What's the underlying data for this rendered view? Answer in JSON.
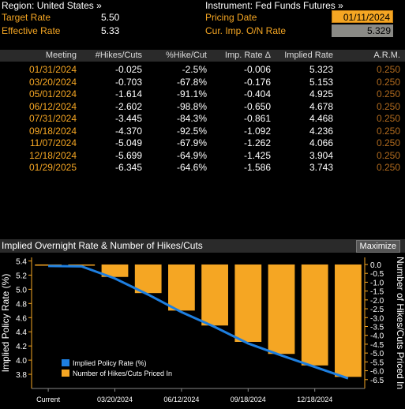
{
  "header": {
    "region_label": "Region: United States »",
    "instrument_label": "Instrument: Fed Funds Futures »",
    "target_rate_label": "Target Rate",
    "target_rate_value": "5.50",
    "effective_rate_label": "Effective Rate",
    "effective_rate_value": "5.33",
    "pricing_date_label": "Pricing Date",
    "pricing_date_value": "01/11/2024",
    "cur_imp_label": "Cur. Imp. O/N Rate",
    "cur_imp_value": "5.329"
  },
  "table": {
    "headers": [
      "Meeting",
      "#Hikes/Cuts",
      "%Hike/Cut",
      "Imp. Rate Δ",
      "Implied Rate",
      "A.R.M."
    ],
    "rows": [
      {
        "meeting": "01/31/2024",
        "hikes": "-0.025",
        "pct": "-2.5%",
        "imp_delta": "-0.006",
        "implied": "5.323",
        "arm": "0.250"
      },
      {
        "meeting": "03/20/2024",
        "hikes": "-0.703",
        "pct": "-67.8%",
        "imp_delta": "-0.176",
        "implied": "5.153",
        "arm": "0.250"
      },
      {
        "meeting": "05/01/2024",
        "hikes": "-1.614",
        "pct": "-91.1%",
        "imp_delta": "-0.404",
        "implied": "4.925",
        "arm": "0.250"
      },
      {
        "meeting": "06/12/2024",
        "hikes": "-2.602",
        "pct": "-98.8%",
        "imp_delta": "-0.650",
        "implied": "4.678",
        "arm": "0.250"
      },
      {
        "meeting": "07/31/2024",
        "hikes": "-3.445",
        "pct": "-84.3%",
        "imp_delta": "-0.861",
        "implied": "4.468",
        "arm": "0.250"
      },
      {
        "meeting": "09/18/2024",
        "hikes": "-4.370",
        "pct": "-92.5%",
        "imp_delta": "-1.092",
        "implied": "4.236",
        "arm": "0.250"
      },
      {
        "meeting": "11/07/2024",
        "hikes": "-5.049",
        "pct": "-67.9%",
        "imp_delta": "-1.262",
        "implied": "4.066",
        "arm": "0.250"
      },
      {
        "meeting": "12/18/2024",
        "hikes": "-5.699",
        "pct": "-64.9%",
        "imp_delta": "-1.425",
        "implied": "3.904",
        "arm": "0.250"
      },
      {
        "meeting": "01/29/2025",
        "hikes": "-6.345",
        "pct": "-64.6%",
        "imp_delta": "-1.586",
        "implied": "3.743",
        "arm": "0.250"
      }
    ]
  },
  "chart_panel": {
    "title": "Implied Overnight Rate & Number of Hikes/Cuts",
    "maximize_label": "Maximize"
  },
  "colors": {
    "accent_orange": "#f5a623",
    "line_blue": "#1e7fe0",
    "arm_orange": "#b06a1e"
  },
  "chart_data": {
    "type": "bar",
    "title": "",
    "categories": [
      "Current",
      "01/31/2024",
      "03/20/2024",
      "05/01/2024",
      "06/12/2024",
      "07/31/2024",
      "09/18/2024",
      "11/07/2024",
      "12/18/2024",
      "01/29/2025"
    ],
    "x_tick_labels": [
      "Current",
      "03/20/2024",
      "06/12/2024",
      "09/18/2024",
      "12/18/2024"
    ],
    "ylabel_left": "Implied Policy Rate (%)",
    "ylabel_right": "Number of Hikes/Cuts Priced In",
    "ylim_left": [
      3.6,
      5.45
    ],
    "ylim_right": [
      -7.0,
      0.4
    ],
    "yticks_left": [
      "5.4",
      "5.2",
      "5.0",
      "4.8",
      "4.6",
      "4.4",
      "4.2",
      "4.0",
      "3.8"
    ],
    "yticks_right": [
      "0.0",
      "-0.5",
      "-1.0",
      "-1.5",
      "-2.0",
      "-2.5",
      "-3.0",
      "-3.5",
      "-4.0",
      "-4.5",
      "-5.0",
      "-5.5",
      "-6.0",
      "-6.5"
    ],
    "series": [
      {
        "name": "Implied Policy Rate (%)",
        "axis": "left",
        "kind": "line",
        "values": [
          5.329,
          5.323,
          5.153,
          4.925,
          4.678,
          4.468,
          4.236,
          4.066,
          3.904,
          3.743
        ]
      },
      {
        "name": "Number of Hikes/Cuts Priced In",
        "axis": "right",
        "kind": "bar",
        "values": [
          0,
          -0.025,
          -0.703,
          -1.614,
          -2.602,
          -3.445,
          -4.37,
          -5.049,
          -5.699,
          -6.345
        ]
      }
    ],
    "grid": false,
    "legend_position": "bottom-left"
  }
}
